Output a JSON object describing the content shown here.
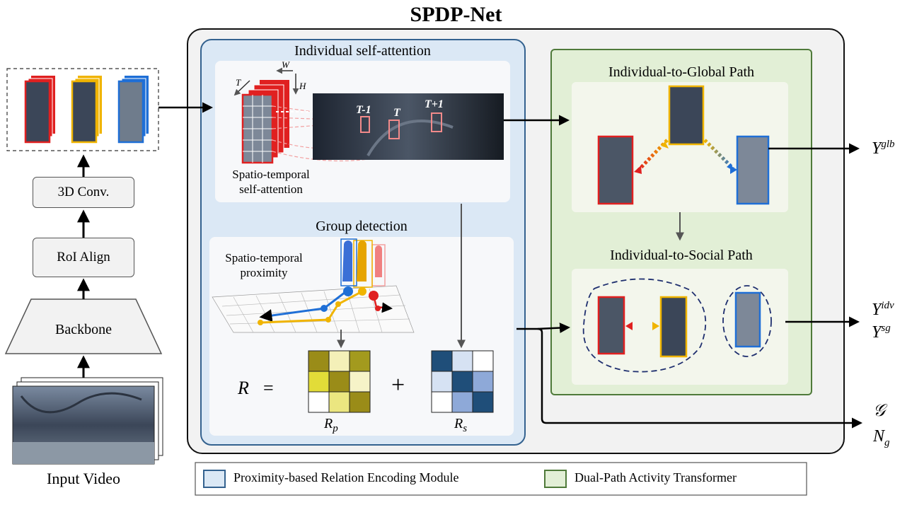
{
  "title": "SPDP-Net",
  "input": {
    "label": "Input Video"
  },
  "pipeline": {
    "backbone": "Backbone",
    "roi_align": "RoI Align",
    "conv3d": "3D Conv."
  },
  "prem": {
    "individual_title": "Individual self-attention",
    "st_label_line1": "Spatio-temporal",
    "st_label_line2": "self-attention",
    "frame_labels": [
      "T-1",
      "T",
      "T+1"
    ],
    "axis_labels": [
      "T",
      "W",
      "H"
    ],
    "group_title": "Group detection",
    "proximity_line1": "Spatio-temporal",
    "proximity_line2": "proximity",
    "equation_lhs": "R",
    "equation_eq": "=",
    "equation_plus": "+",
    "rp_label": "R",
    "rp_sub": "p",
    "rs_label": "R",
    "rs_sub": "s",
    "rp_matrix": [
      [
        "#9a8c18",
        "#f4f0b8",
        "#a39a1e"
      ],
      [
        "#e2dc38",
        "#9a8c18",
        "#f6f3c8"
      ],
      [
        "#ffffff",
        "#ebe680",
        "#9a8c18"
      ]
    ],
    "rs_matrix": [
      [
        "#1f4e79",
        "#d6e2f3",
        "#ffffff"
      ],
      [
        "#d6e2f3",
        "#1f4e79",
        "#8ea9d8"
      ],
      [
        "#ffffff",
        "#8ea9d8",
        "#1f4e79"
      ]
    ]
  },
  "dpat": {
    "global_title": "Individual-to-Global Path",
    "social_title": "Individual-to-Social Path"
  },
  "outputs": {
    "glb": {
      "base": "Y",
      "sup": "glb"
    },
    "idv": {
      "base": "Y",
      "sup": "idv"
    },
    "sg": {
      "base": "Y",
      "sup": "sg"
    },
    "groups": "𝒢",
    "ng": {
      "base": "N",
      "sub": "g"
    }
  },
  "legend": {
    "prem": "Proximity-based Relation Encoding Module",
    "dpat": "Dual-Path Activity Transformer"
  },
  "colors": {
    "red": "#e02020",
    "yellow": "#f0b400",
    "blue": "#1f6fd6",
    "prem_bg": "#dbe8f5",
    "prem_border": "#34628f",
    "dpat_bg": "#e2efd6",
    "dpat_border": "#4f7a3a",
    "outer_bg": "#f2f2f2"
  }
}
